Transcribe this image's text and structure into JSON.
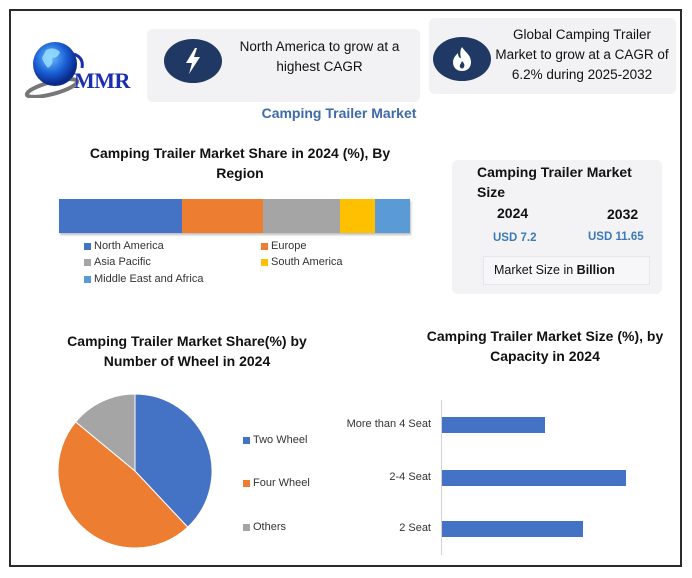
{
  "logo": {
    "text": "MMR"
  },
  "cards": {
    "north_america": {
      "icon": "lightning-icon",
      "text": "North America to grow at a highest CAGR"
    },
    "global_cagr": {
      "icon": "flame-icon",
      "text": "Global Camping Trailer Market to grow at a CAGR of 6.2% during 2025-2032"
    }
  },
  "main_title": "Camping Trailer Market",
  "market_size": {
    "title": "Camping Trailer Market Size",
    "years": [
      {
        "year": "2024",
        "value": "USD 7.2"
      },
      {
        "year": "2032",
        "value": "USD 11.65"
      }
    ],
    "unit_prefix": "Market Size in ",
    "unit_bold": "Billion"
  },
  "colors": {
    "north_america": "#4472c4",
    "europe": "#ed7d31",
    "asia_pacific": "#a5a5a5",
    "south_america": "#ffc000",
    "mea": "#5b9bd5",
    "two_wheel": "#4472c4",
    "four_wheel": "#ed7d31",
    "others": "#a5a5a5",
    "capacity_bar": "#4472c4",
    "accent_title": "#3e6aa8",
    "icon_circle": "#1f3864"
  },
  "chart_data": [
    {
      "type": "bar",
      "orientation": "horizontal-stacked-100",
      "title": "Camping Trailer Market Share in 2024 (%), By Region",
      "categories": [
        "North America",
        "Europe",
        "Asia Pacific",
        "South America",
        "Middle East and Africa"
      ],
      "values": [
        35,
        23,
        22,
        10,
        10
      ],
      "legend": [
        "North America",
        "Europe",
        "Asia Pacific",
        "South America",
        "Middle East and Africa"
      ],
      "legend_position": "bottom",
      "xlabel": "",
      "ylabel": "",
      "grid": false
    },
    {
      "type": "pie",
      "title": "Camping Trailer Market Share(%) by  Number of Wheel  in 2024",
      "categories": [
        "Two Wheel",
        "Four Wheel",
        "Others"
      ],
      "values": [
        38,
        48,
        14
      ],
      "legend": [
        "Two Wheel",
        "Four Wheel",
        "Others"
      ],
      "legend_position": "right"
    },
    {
      "type": "bar",
      "orientation": "horizontal",
      "title": "Camping Trailer Market Size (%), by Capacity in 2024",
      "categories": [
        "More than 4 Seat",
        "2-4 Seat",
        "2 Seat"
      ],
      "values": [
        24,
        43,
        33
      ],
      "xlabel": "",
      "ylabel": "",
      "grid": false,
      "legend": []
    }
  ]
}
